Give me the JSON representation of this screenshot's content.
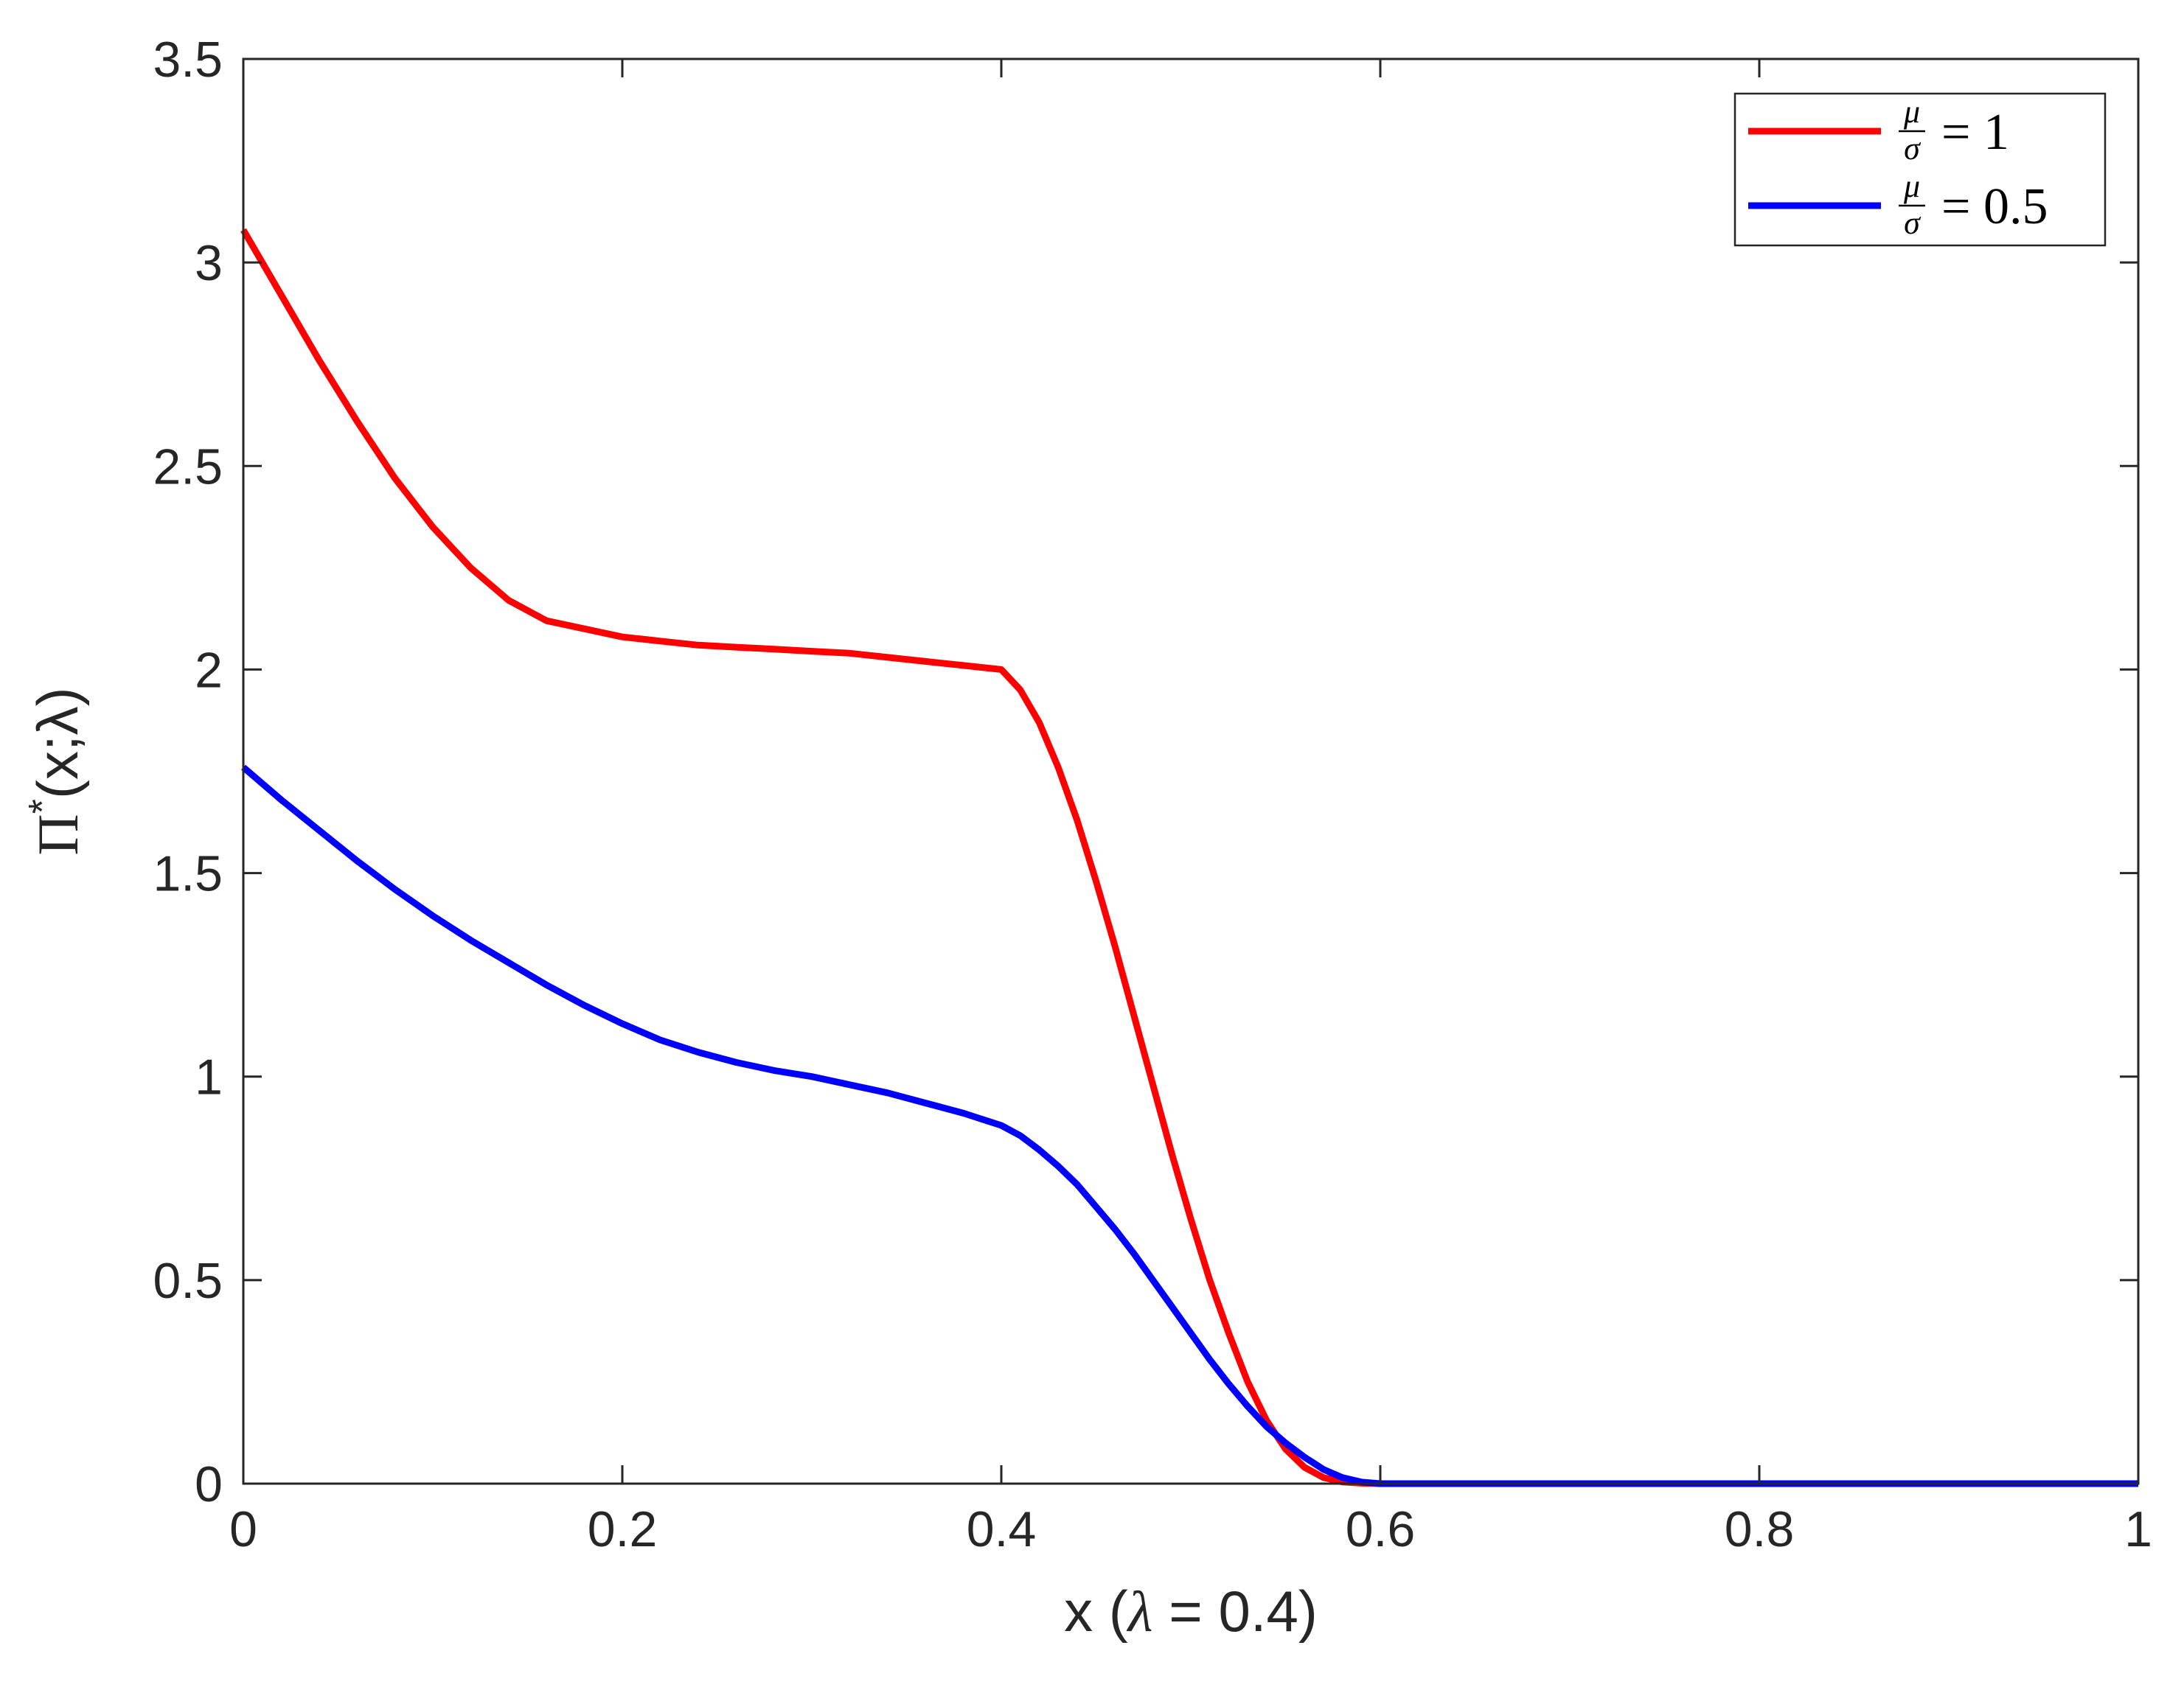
{
  "chart_data": {
    "type": "line",
    "title": "",
    "xlabel": {
      "prefix": "x (",
      "lambda": "λ",
      "suffix": " = 0.4)"
    },
    "ylabel": {
      "main": "Π",
      "sup": "*",
      "args": "(x;λ)"
    },
    "xlim": [
      0,
      1
    ],
    "ylim": [
      0,
      3.5
    ],
    "x_ticks": [
      0,
      0.2,
      0.4,
      0.6,
      0.8,
      1
    ],
    "x_tick_labels": [
      "0",
      "0.2",
      "0.4",
      "0.6",
      "0.8",
      "1"
    ],
    "y_ticks": [
      0,
      0.5,
      1,
      1.5,
      2,
      2.5,
      3,
      3.5
    ],
    "y_tick_labels": [
      "0",
      "0.5",
      "1",
      "1.5",
      "2",
      "2.5",
      "3",
      "3.5"
    ],
    "grid": false,
    "legend_position": "top-right",
    "series": [
      {
        "name": "μ/σ = 1",
        "legend": {
          "num": "μ",
          "den": "σ",
          "eq": "= 1"
        },
        "color": "#ff0000",
        "x": [
          0,
          0.02,
          0.04,
          0.06,
          0.08,
          0.1,
          0.12,
          0.14,
          0.16,
          0.18,
          0.2,
          0.22,
          0.24,
          0.26,
          0.28,
          0.3,
          0.32,
          0.34,
          0.36,
          0.38,
          0.4,
          0.41,
          0.42,
          0.43,
          0.44,
          0.45,
          0.46,
          0.47,
          0.48,
          0.49,
          0.5,
          0.51,
          0.52,
          0.53,
          0.54,
          0.55,
          0.56,
          0.57,
          0.58,
          0.59,
          0.6,
          0.62,
          0.64,
          0.66,
          0.68,
          0.7,
          0.75,
          0.8,
          0.85,
          0.9,
          0.95,
          1.0
        ],
        "y": [
          3.08,
          2.92,
          2.76,
          2.61,
          2.47,
          2.35,
          2.25,
          2.17,
          2.12,
          2.1,
          2.08,
          2.07,
          2.06,
          2.055,
          2.05,
          2.045,
          2.04,
          2.03,
          2.02,
          2.01,
          2.0,
          1.95,
          1.87,
          1.76,
          1.63,
          1.48,
          1.32,
          1.15,
          0.98,
          0.81,
          0.65,
          0.5,
          0.37,
          0.25,
          0.155,
          0.085,
          0.04,
          0.015,
          0.004,
          0.001,
          0,
          0,
          0,
          0,
          0,
          0,
          0,
          0,
          0,
          0,
          0,
          0
        ]
      },
      {
        "name": "μ/σ = 0.5",
        "legend": {
          "num": "μ",
          "den": "σ",
          "eq": "= 0.5"
        },
        "color": "#0000ff",
        "x": [
          0,
          0.02,
          0.04,
          0.06,
          0.08,
          0.1,
          0.12,
          0.14,
          0.16,
          0.18,
          0.2,
          0.22,
          0.24,
          0.26,
          0.28,
          0.3,
          0.32,
          0.34,
          0.36,
          0.38,
          0.4,
          0.41,
          0.42,
          0.43,
          0.44,
          0.45,
          0.46,
          0.47,
          0.48,
          0.49,
          0.5,
          0.51,
          0.52,
          0.53,
          0.54,
          0.55,
          0.56,
          0.57,
          0.58,
          0.59,
          0.6,
          0.62,
          0.64,
          0.66,
          0.68,
          0.7,
          0.75,
          0.8,
          0.85,
          0.9,
          0.95,
          1.0
        ],
        "y": [
          1.76,
          1.68,
          1.605,
          1.53,
          1.46,
          1.395,
          1.335,
          1.28,
          1.225,
          1.175,
          1.13,
          1.09,
          1.06,
          1.035,
          1.015,
          1.0,
          0.98,
          0.96,
          0.935,
          0.91,
          0.88,
          0.855,
          0.82,
          0.78,
          0.735,
          0.68,
          0.625,
          0.565,
          0.5,
          0.435,
          0.37,
          0.305,
          0.245,
          0.19,
          0.14,
          0.1,
          0.065,
          0.035,
          0.015,
          0.004,
          0,
          0,
          0,
          0,
          0,
          0,
          0,
          0,
          0,
          0,
          0,
          0
        ]
      }
    ]
  }
}
